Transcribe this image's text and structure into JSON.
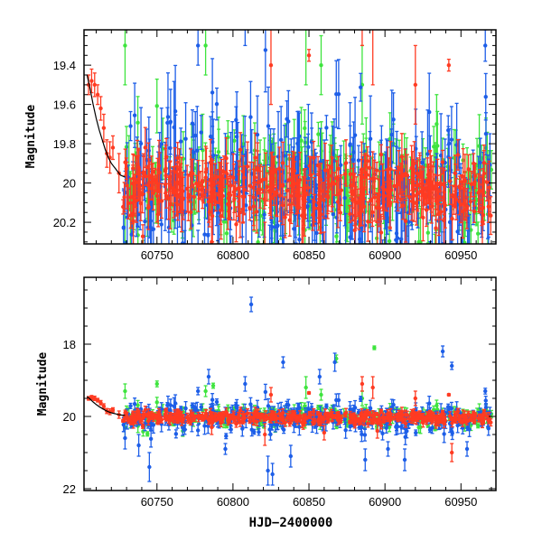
{
  "chart_data": [
    {
      "type": "scatter",
      "panel": "top",
      "title": "",
      "xlabel": "",
      "ylabel": "Magnitude",
      "xlim": [
        60702,
        60973
      ],
      "ylim": [
        20.31,
        19.22
      ],
      "y_inverted": true,
      "x_ticks": [
        60750,
        60800,
        60850,
        60900,
        60950
      ],
      "x_tick_labels": [
        "60750",
        "60800",
        "60850",
        "60900",
        "60950"
      ],
      "y_ticks": [
        19.4,
        19.6,
        19.8,
        20,
        20.2
      ],
      "y_tick_labels": [
        "19.4",
        "19.6",
        "19.8",
        "20",
        "20.2"
      ]
    },
    {
      "type": "scatter",
      "panel": "bottom",
      "title": "",
      "xlabel": "HJD−2400000",
      "ylabel": "Magnitude",
      "xlim": [
        60702,
        60973
      ],
      "ylim": [
        22.05,
        16.15
      ],
      "y_inverted": true,
      "x_ticks": [
        60750,
        60800,
        60850,
        60900,
        60950
      ],
      "x_tick_labels": [
        "60750",
        "60800",
        "60850",
        "60900",
        "60950"
      ],
      "y_ticks": [
        18,
        20,
        22
      ],
      "y_tick_labels": [
        "18",
        "20",
        "22"
      ]
    }
  ],
  "series": [
    {
      "name": "green",
      "color": "#3ee43e",
      "bulk": {
        "x_range": [
          60727,
          60970
        ],
        "n": 260,
        "mean": 20.02,
        "sd": 0.13,
        "err": 0.12,
        "seed": 11
      },
      "points": [
        [
          60729,
          19.3,
          0.2
        ],
        [
          60750,
          19.1,
          0.08
        ],
        [
          60787,
          19.15,
          0.07
        ],
        [
          60782,
          19.3,
          0.15
        ],
        [
          60848,
          19.2,
          0.3
        ],
        [
          60868,
          18.4,
          0.1
        ],
        [
          60893,
          18.1,
          0.05
        ],
        [
          60858,
          19.4,
          0.15
        ],
        [
          60885,
          19.5,
          0.2
        ],
        [
          60934,
          19.7,
          0.15
        ],
        [
          60729,
          20.3,
          0.3
        ],
        [
          60767,
          20.4,
          0.15
        ]
      ]
    },
    {
      "name": "blue",
      "color": "#1d5ee8",
      "bulk": {
        "x_range": [
          60727,
          60970
        ],
        "n": 330,
        "mean": 20.05,
        "sd": 0.2,
        "err": 0.15,
        "seed": 23
      },
      "points": [
        [
          60812,
          16.9,
          0.2
        ],
        [
          60938,
          18.2,
          0.15
        ],
        [
          60944,
          18.6,
          0.1
        ],
        [
          60966,
          19.3,
          0.08
        ],
        [
          60833,
          18.5,
          0.15
        ],
        [
          60784,
          18.9,
          0.2
        ],
        [
          60867,
          18.5,
          0.25
        ],
        [
          60857,
          18.9,
          0.2
        ],
        [
          60745,
          21.4,
          0.4
        ],
        [
          60823,
          21.5,
          0.4
        ],
        [
          60826,
          21.6,
          0.3
        ],
        [
          60913,
          21.2,
          0.3
        ],
        [
          60738,
          20.8,
          0.3
        ],
        [
          60795,
          20.9,
          0.15
        ],
        [
          60808,
          19.1,
          0.2
        ],
        [
          60838,
          21.1,
          0.3
        ],
        [
          60887,
          21.2,
          0.3
        ],
        [
          60954,
          20.9,
          0.2
        ],
        [
          60777,
          19.3,
          0.1
        ],
        [
          60729,
          20.6,
          0.3
        ],
        [
          60902,
          20.9,
          0.2
        ]
      ]
    },
    {
      "name": "red",
      "color": "#ff3b22",
      "bulk": {
        "x_range": [
          60727,
          60970
        ],
        "n": 420,
        "mean": 20.03,
        "sd": 0.08,
        "err": 0.09,
        "seed": 37
      },
      "points": [
        [
          60705,
          19.5,
          0.05
        ],
        [
          60707,
          19.48,
          0.06
        ],
        [
          60709,
          19.5,
          0.06
        ],
        [
          60711,
          19.55,
          0.05
        ],
        [
          60713,
          19.62,
          0.06
        ],
        [
          60715,
          19.72,
          0.07
        ],
        [
          60717,
          19.85,
          0.07
        ],
        [
          60719,
          19.87,
          0.08
        ],
        [
          60721,
          19.82,
          0.06
        ],
        [
          60725,
          19.95,
          0.1
        ],
        [
          60942,
          19.4,
          0.03
        ],
        [
          60944,
          21.0,
          0.25
        ],
        [
          60885,
          19.1,
          0.2
        ],
        [
          60825,
          19.4,
          0.2
        ],
        [
          60892,
          19.2,
          0.3
        ],
        [
          60821,
          20.5,
          0.3
        ],
        [
          60860,
          20.45,
          0.2
        ],
        [
          60895,
          20.4,
          0.2
        ],
        [
          60786,
          20.3,
          0.2
        ],
        [
          60850,
          19.35,
          0.03
        ],
        [
          60920,
          19.5,
          0.2
        ]
      ]
    }
  ],
  "model": {
    "name": "fit",
    "color": "#000000",
    "points": [
      [
        60704,
        19.45
      ],
      [
        60706,
        19.52
      ],
      [
        60708,
        19.6
      ],
      [
        60710,
        19.67
      ],
      [
        60712,
        19.73
      ],
      [
        60714,
        19.78
      ],
      [
        60716,
        19.83
      ],
      [
        60718,
        19.87
      ],
      [
        60720,
        19.9
      ],
      [
        60723,
        19.93
      ],
      [
        60726,
        19.96
      ],
      [
        60729,
        19.97
      ]
    ]
  }
}
